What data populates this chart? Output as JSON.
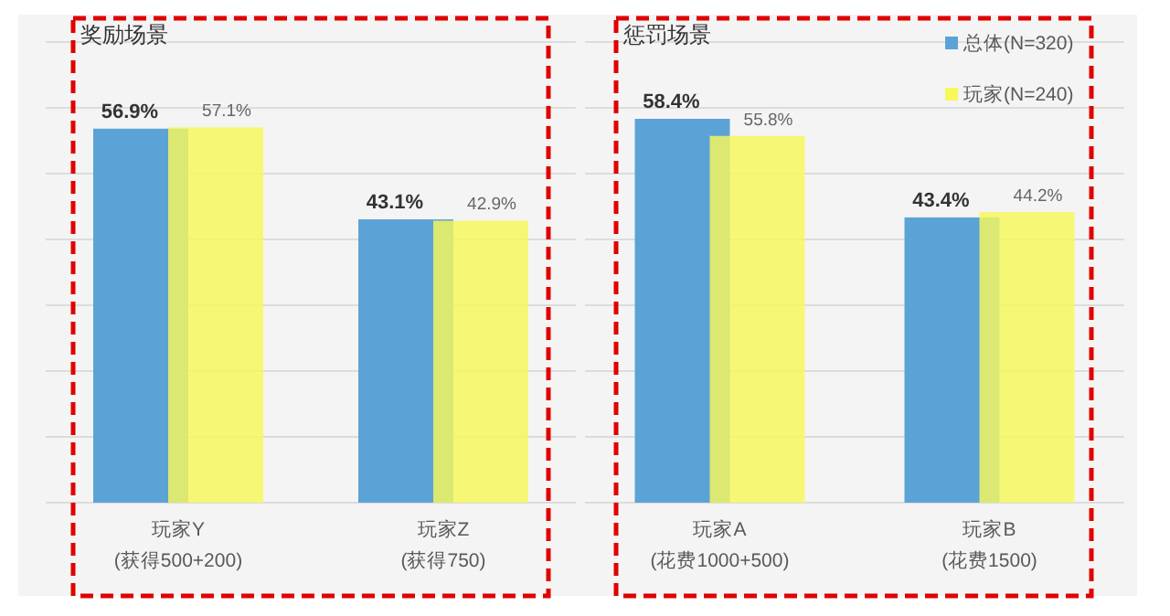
{
  "chart_data": [
    {
      "type": "bar",
      "title": "奖励场景",
      "categories": [
        "玩家Y\n(获得500+200)",
        "玩家Z\n(获得750)"
      ],
      "series": [
        {
          "color": "#5ba3d6",
          "values": [
            56.9,
            43.1
          ],
          "value_labels": [
            "56.9%",
            "43.1%"
          ]
        },
        {
          "color": "#f8f85a",
          "values": [
            57.1,
            42.9
          ],
          "value_labels": [
            "57.1%",
            "42.9%"
          ]
        }
      ],
      "tick_labels": "x",
      "grid": "y",
      "legend": false
    },
    {
      "type": "bar",
      "title": "惩罚场景",
      "categories": [
        "玩家A\n(花费1000+500)",
        "玩家B\n(花费1500)"
      ],
      "series": [
        {
          "name": "总体(N=320)",
          "color": "#5ba3d6",
          "values": [
            58.4,
            43.4
          ],
          "value_labels": [
            "58.4%",
            "43.4%"
          ]
        },
        {
          "name": "玩家(N=240)",
          "color": "#f8f85a",
          "values": [
            55.8,
            44.2
          ],
          "value_labels": [
            "55.8%",
            "44.2%"
          ]
        }
      ],
      "tick_labels": "x",
      "grid": "y",
      "legend": "top right"
    }
  ]
}
